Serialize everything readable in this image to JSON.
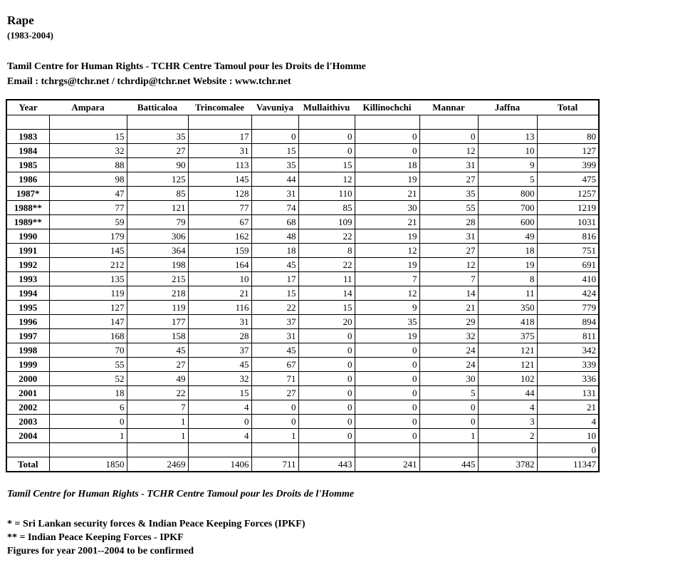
{
  "header": {
    "title": "Rape",
    "subtitle": "(1983-2004)",
    "org_line": "Tamil Centre for Human Rights - TCHR Centre Tamoul pour les Droits de l'Homme",
    "contact_line": "Email : tchrgs@tchr.net / tchrdip@tchr.net Website : www.tchr.net"
  },
  "colors": {
    "text": "#000000",
    "background": "#ffffff",
    "table_border": "#000000"
  },
  "table": {
    "columns": [
      "Year",
      "Ampara",
      "Batticaloa",
      "Trincomalee",
      "Vavuniya",
      "Mullaithivu",
      "Killinochchi",
      "Mannar",
      "Jaffna",
      "Total"
    ],
    "rows": [
      [
        "",
        "",
        "",
        "",
        "",
        "",
        "",
        "",
        "",
        ""
      ],
      [
        "1983",
        "15",
        "35",
        "17",
        "0",
        "0",
        "0",
        "0",
        "13",
        "80"
      ],
      [
        "1984",
        "32",
        "27",
        "31",
        "15",
        "0",
        "0",
        "12",
        "10",
        "127"
      ],
      [
        "1985",
        "88",
        "90",
        "113",
        "35",
        "15",
        "18",
        "31",
        "9",
        "399"
      ],
      [
        "1986",
        "98",
        "125",
        "145",
        "44",
        "12",
        "19",
        "27",
        "5",
        "475"
      ],
      [
        "1987*",
        "47",
        "85",
        "128",
        "31",
        "110",
        "21",
        "35",
        "800",
        "1257"
      ],
      [
        "1988**",
        "77",
        "121",
        "77",
        "74",
        "85",
        "30",
        "55",
        "700",
        "1219"
      ],
      [
        "1989**",
        "59",
        "79",
        "67",
        "68",
        "109",
        "21",
        "28",
        "600",
        "1031"
      ],
      [
        "1990",
        "179",
        "306",
        "162",
        "48",
        "22",
        "19",
        "31",
        "49",
        "816"
      ],
      [
        "1991",
        "145",
        "364",
        "159",
        "18",
        "8",
        "12",
        "27",
        "18",
        "751"
      ],
      [
        "1992",
        "212",
        "198",
        "164",
        "45",
        "22",
        "19",
        "12",
        "19",
        "691"
      ],
      [
        "1993",
        "135",
        "215",
        "10",
        "17",
        "11",
        "7",
        "7",
        "8",
        "410"
      ],
      [
        "1994",
        "119",
        "218",
        "21",
        "15",
        "14",
        "12",
        "14",
        "11",
        "424"
      ],
      [
        "1995",
        "127",
        "119",
        "116",
        "22",
        "15",
        "9",
        "21",
        "350",
        "779"
      ],
      [
        "1996",
        "147",
        "177",
        "31",
        "37",
        "20",
        "35",
        "29",
        "418",
        "894"
      ],
      [
        "1997",
        "168",
        "158",
        "28",
        "31",
        "0",
        "19",
        "32",
        "375",
        "811"
      ],
      [
        "1998",
        "70",
        "45",
        "37",
        "45",
        "0",
        "0",
        "24",
        "121",
        "342"
      ],
      [
        "1999",
        "55",
        "27",
        "45",
        "67",
        "0",
        "0",
        "24",
        "121",
        "339"
      ],
      [
        "2000",
        "52",
        "49",
        "32",
        "71",
        "0",
        "0",
        "30",
        "102",
        "336"
      ],
      [
        "2001",
        "18",
        "22",
        "15",
        "27",
        "0",
        "0",
        "5",
        "44",
        "131"
      ],
      [
        "2002",
        "6",
        "7",
        "4",
        "0",
        "0",
        "0",
        "0",
        "4",
        "21"
      ],
      [
        "2003",
        "0",
        "1",
        "0",
        "0",
        "0",
        "0",
        "0",
        "3",
        "4"
      ],
      [
        "2004",
        "1",
        "1",
        "4",
        "1",
        "0",
        "0",
        "1",
        "2",
        "10"
      ],
      [
        "",
        "",
        "",
        "",
        "",
        "",
        "",
        "",
        "",
        "0"
      ],
      [
        "Total",
        "1850",
        "2469",
        "1406",
        "711",
        "443",
        "241",
        "445",
        "3782",
        "11347"
      ]
    ]
  },
  "footer": {
    "org_line_italic": "Tamil Centre for Human Rights - TCHR Centre Tamoul pour les Droits de l'Homme",
    "note_single_asterisk": "* = Sri Lankan security forces & Indian Peace Keeping Forces (IPKF)",
    "note_double_asterisk": "** = Indian Peace Keeping Forces - IPKF",
    "note_confirmation": "Figures for year 2001--2004 to be confirmed"
  }
}
